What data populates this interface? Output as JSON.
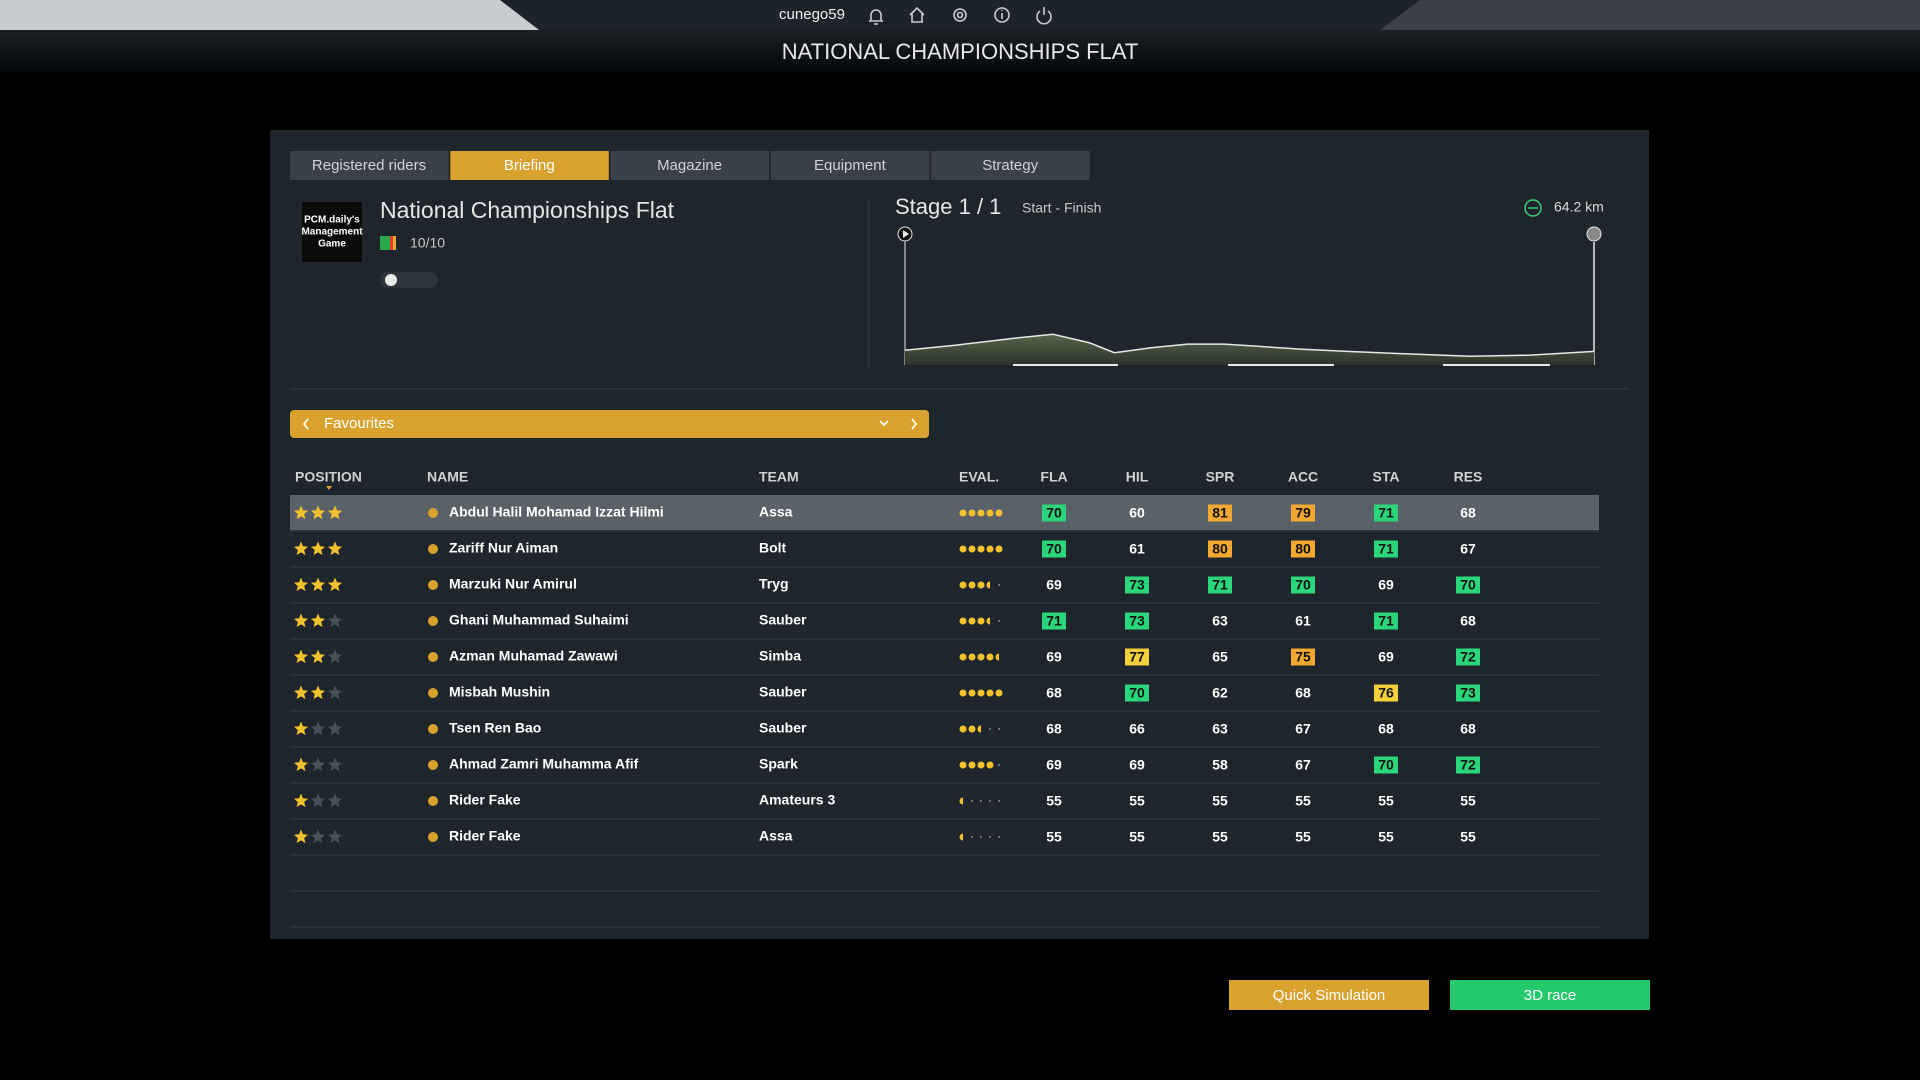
{
  "top_bar": {
    "username": "cunego59"
  },
  "header": {
    "title": "NATIONAL CHAMPIONSHIPS FLAT"
  },
  "tabs": {
    "items": [
      "Registered riders",
      "Briefing",
      "Magazine",
      "Equipment",
      "Strategy"
    ],
    "active": 1
  },
  "race": {
    "logo_lines": [
      "PCM.daily's",
      "Management",
      "Game"
    ],
    "name": "National Championships Flat",
    "rating": "10/10",
    "stage": "Stage 1 / 1",
    "route": "Start - Finish",
    "distance": "64.2 km"
  },
  "filter": {
    "label": "Favourites"
  },
  "table": {
    "columns": [
      "POSITION",
      "NAME",
      "TEAM",
      "EVAL.",
      "FLA",
      "HIL",
      "SPR",
      "ACC",
      "STA",
      "RES"
    ],
    "selected_row": 0,
    "highlight_colors": {
      "green": "#2bd67b",
      "yellow": "#f2d03b",
      "orange": "#f0a830"
    },
    "rows": [
      {
        "stars": 3,
        "name": "Abdul Halil Mohamad Izzat Hilmi",
        "team": "Assa",
        "eval": 5,
        "stats": [
          70,
          60,
          81,
          79,
          71,
          68
        ],
        "highlights": [
          "green",
          null,
          "orange",
          "orange",
          "green",
          null
        ]
      },
      {
        "stars": 3,
        "name": "Zariff Nur Aiman",
        "team": "Bolt",
        "eval": 5,
        "stats": [
          70,
          61,
          80,
          80,
          71,
          67
        ],
        "highlights": [
          "green",
          null,
          "orange",
          "orange",
          "green",
          null
        ]
      },
      {
        "stars": 3,
        "name": "Marzuki Nur Amirul",
        "team": "Tryg",
        "eval": 3.5,
        "stats": [
          69,
          73,
          71,
          70,
          69,
          70
        ],
        "highlights": [
          null,
          "green",
          "green",
          "green",
          null,
          "green"
        ]
      },
      {
        "stars": 2,
        "name": "Ghani Muhammad Suhaimi",
        "team": "Sauber",
        "eval": 3.5,
        "stats": [
          71,
          73,
          63,
          61,
          71,
          68
        ],
        "highlights": [
          "green",
          "green",
          null,
          null,
          "green",
          null
        ]
      },
      {
        "stars": 2,
        "name": "Azman Muhamad Zawawi",
        "team": "Simba",
        "eval": 4.5,
        "stats": [
          69,
          77,
          65,
          75,
          69,
          72
        ],
        "highlights": [
          null,
          "yellow",
          null,
          "orange",
          null,
          "green"
        ]
      },
      {
        "stars": 2,
        "name": "Misbah Mushin",
        "team": "Sauber",
        "eval": 5,
        "stats": [
          68,
          70,
          62,
          68,
          76,
          73
        ],
        "highlights": [
          null,
          "green",
          null,
          null,
          "yellow",
          "green"
        ]
      },
      {
        "stars": 1,
        "name": "Tsen Ren Bao",
        "team": "Sauber",
        "eval": 2.5,
        "stats": [
          68,
          66,
          63,
          67,
          68,
          68
        ],
        "highlights": [
          null,
          null,
          null,
          null,
          null,
          null
        ]
      },
      {
        "stars": 1,
        "name": "Ahmad Zamri Muhamma Afif",
        "team": "Spark",
        "eval": 4,
        "stats": [
          69,
          69,
          58,
          67,
          70,
          72
        ],
        "highlights": [
          null,
          null,
          null,
          null,
          "green",
          "green"
        ]
      },
      {
        "stars": 1,
        "name": "Rider Fake",
        "team": "Amateurs 3",
        "eval": 0.5,
        "stats": [
          55,
          55,
          55,
          55,
          55,
          55
        ],
        "highlights": [
          null,
          null,
          null,
          null,
          null,
          null
        ]
      },
      {
        "stars": 1,
        "name": "Rider Fake",
        "team": "Assa",
        "eval": 0.5,
        "stats": [
          55,
          55,
          55,
          55,
          55,
          55
        ],
        "highlights": [
          null,
          null,
          null,
          null,
          null,
          null
        ]
      }
    ]
  },
  "buttons": {
    "quick": "Quick Simulation",
    "race": "3D race"
  }
}
